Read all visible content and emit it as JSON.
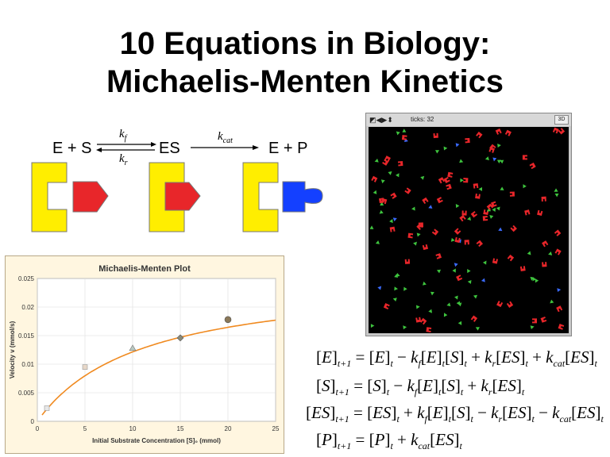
{
  "slide": {
    "title_line1": "10 Equations in Biology:",
    "title_line2": "Michaelis-Menten Kinetics"
  },
  "scheme": {
    "left": "E + S",
    "middle": "ES",
    "right": "E + P",
    "kf_base": "k",
    "kf_sub": "f",
    "kr_base": "k",
    "kr_sub": "r",
    "kcat_base": "k",
    "kcat_sub": "cat"
  },
  "simulation": {
    "ticks_label": "ticks: 32",
    "view_button": "3D",
    "colors": {
      "enzyme": "#e8262a",
      "substrate": "#3ec43e",
      "product": "#3b6bff",
      "background": "#000000"
    }
  },
  "chart_data": {
    "type": "scatter",
    "title": "Michaelis-Menten Plot",
    "xlabel": "Initial Substrate Concentration [S]₀ (mmol)",
    "ylabel": "Velocity v (mmol/s)",
    "xlim": [
      0,
      25
    ],
    "ylim": [
      0,
      0.025
    ],
    "xticks": [
      "0",
      "5",
      "10",
      "15",
      "20",
      "25"
    ],
    "yticks": [
      "0",
      "0.005",
      "0.01",
      "0.015",
      "0.02",
      "0.025"
    ],
    "points": [
      {
        "x": 1,
        "y": 0.0023,
        "marker": "square",
        "color": "#e8e8e8"
      },
      {
        "x": 5,
        "y": 0.0095,
        "marker": "square",
        "color": "#e8d8c8"
      },
      {
        "x": 10,
        "y": 0.0128,
        "marker": "triangle",
        "color": "#b8c8c0"
      },
      {
        "x": 15,
        "y": 0.0146,
        "marker": "diamond",
        "color": "#8a8a78"
      },
      {
        "x": 20,
        "y": 0.0178,
        "marker": "circle",
        "color": "#8a7858"
      }
    ],
    "fit": {
      "vmax": 0.0255,
      "km": 11,
      "color": "#f08a20"
    }
  },
  "equations": [
    "[E]t+1 = [E]t − kf[E]t[S]t + kr[ES]t + kcat[ES]t",
    "[S]t+1 = [S]t − kf[E]t[S]t + kr[ES]t",
    "[ES]t+1 = [ES]t + kf[E]t[S]t − kr[ES]t − kcat[ES]t",
    "[P]t+1 = [P]t + kcat[ES]t"
  ]
}
